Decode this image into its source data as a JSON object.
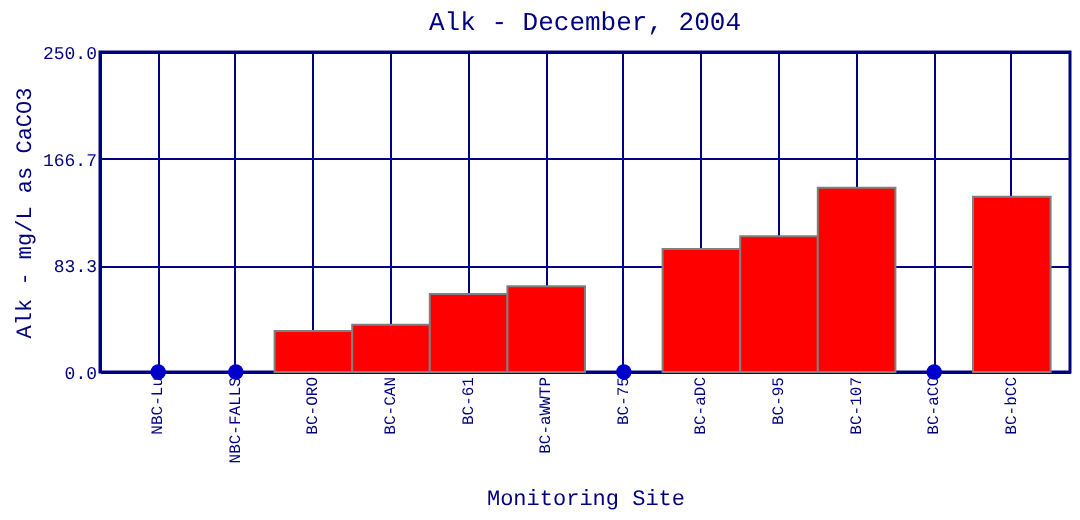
{
  "chart_data": {
    "type": "bar",
    "title": "Alk - December, 2004",
    "xlabel": "Monitoring Site",
    "ylabel": "Alk - mg/L as CaCO3",
    "categories": [
      "NBC-Lu",
      "NBC-FALLS",
      "BC-ORO",
      "BC-CAN",
      "BC-61",
      "BC-aWWTP",
      "BC-75",
      "BC-aDC",
      "BC-95",
      "BC-107",
      "BC-aCC",
      "BC-bCC"
    ],
    "series": [
      {
        "color": "#ff0000",
        "values": [
          null,
          null,
          32,
          37,
          61,
          67,
          null,
          96,
          106,
          144,
          null,
          137
        ]
      },
      {
        "type": "scatter",
        "color": "#0000cc",
        "values": [
          0,
          0,
          null,
          null,
          null,
          null,
          0,
          null,
          null,
          null,
          0,
          null
        ]
      }
    ],
    "ylim": [
      0,
      250
    ],
    "yticks": [
      {
        "value": 0,
        "label": "0.0"
      },
      83.3,
      166.7,
      {
        "value": 250,
        "label": "250.0"
      }
    ],
    "grid": true,
    "marker": "circle"
  }
}
